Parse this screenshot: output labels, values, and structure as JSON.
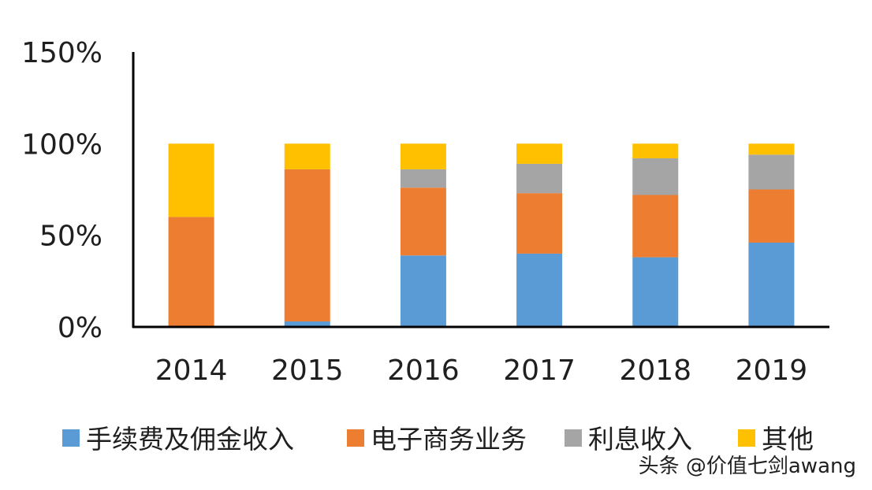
{
  "chart_data": {
    "type": "bar",
    "stacked": true,
    "categories": [
      "2014",
      "2015",
      "2016",
      "2017",
      "2018",
      "2019"
    ],
    "series": [
      {
        "name": "手续费及佣金收入",
        "color": "#5B9BD5",
        "values": [
          0,
          3,
          39,
          40,
          38,
          46
        ]
      },
      {
        "name": "电子商务业务",
        "color": "#ED7D31",
        "values": [
          60,
          83,
          37,
          33,
          34,
          29
        ]
      },
      {
        "name": "利息收入",
        "color": "#A5A5A5",
        "values": [
          0,
          0,
          10,
          16,
          20,
          19
        ]
      },
      {
        "name": "其他",
        "color": "#FFC000",
        "values": [
          40,
          14,
          14,
          11,
          8,
          6
        ]
      }
    ],
    "y_ticks": [
      "0%",
      "50%",
      "100%",
      "150%"
    ],
    "ylim": [
      0,
      150
    ],
    "legend_position": "bottom",
    "grid": false
  },
  "watermark": "头条 @价值七剑awang"
}
